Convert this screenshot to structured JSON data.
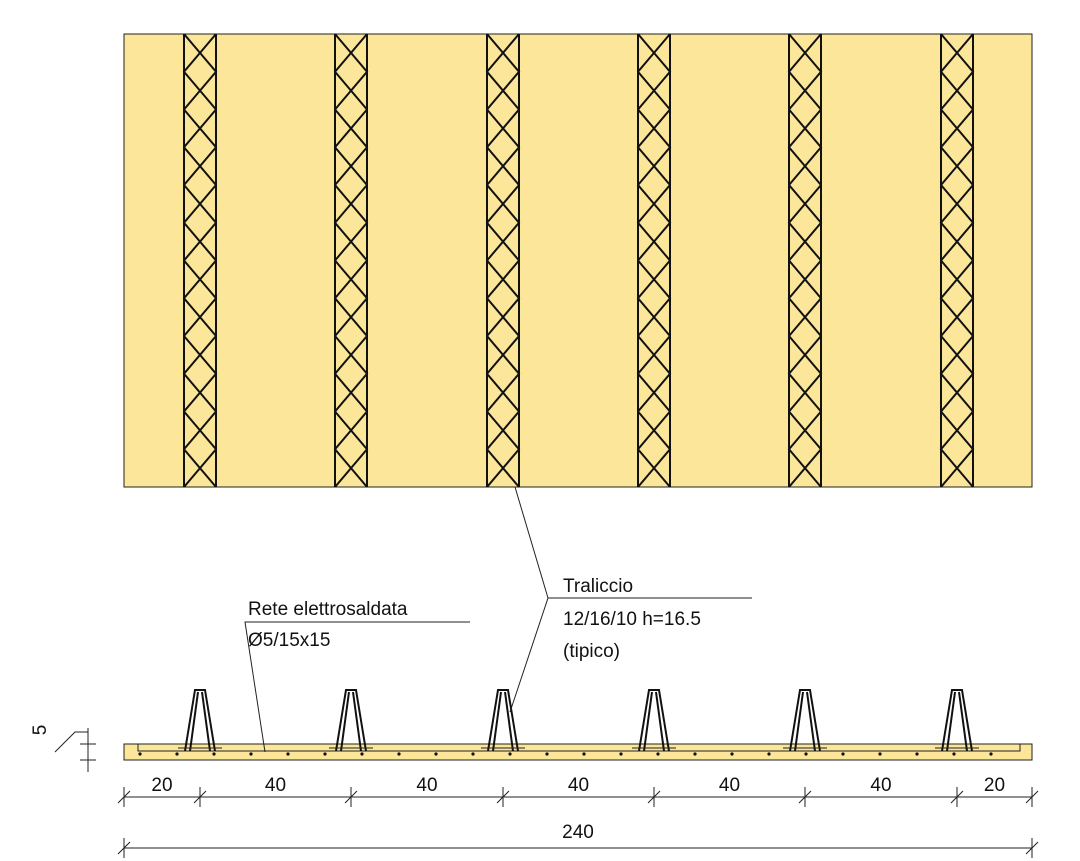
{
  "labels": {
    "mesh": {
      "title": "Rete elettrosaldata",
      "spec": "Ø5/15x15"
    },
    "truss": {
      "title": "Traliccio",
      "spec": "12/16/10 h=16.5",
      "note": "(tipico)"
    },
    "thickness": "5"
  },
  "dimensions": {
    "segments": [
      "20",
      "40",
      "40",
      "40",
      "40",
      "40",
      "20"
    ],
    "total": "240"
  }
}
